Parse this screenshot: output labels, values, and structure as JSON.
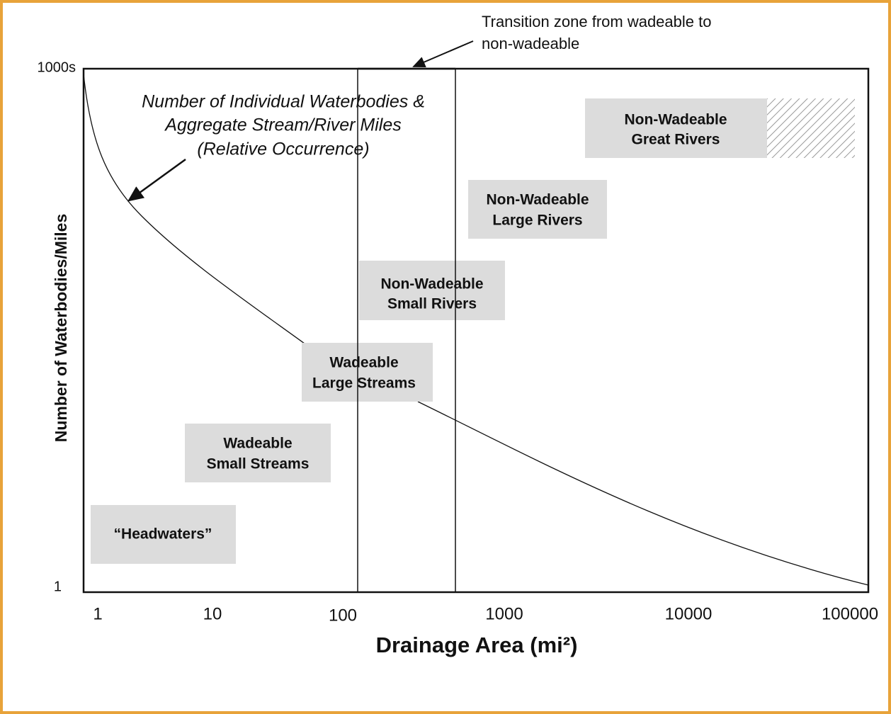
{
  "annotations": {
    "transition": [
      "Transition zone from wadeable to",
      "non-wadeable"
    ],
    "curve": [
      "Number of Individual Waterbodies &",
      "Aggregate Stream/River Miles",
      "(Relative Occurrence)"
    ]
  },
  "axes": {
    "y_label": "Number of Waterbodies/Miles",
    "x_label": "Drainage Area (mi²)",
    "y_ticks": [
      "1000s",
      "1"
    ],
    "x_ticks": [
      "1",
      "10",
      "100",
      "1000",
      "10000",
      "100000"
    ]
  },
  "boxes": [
    {
      "lines": [
        "Non-Wadeable",
        "Great Rivers"
      ]
    },
    {
      "lines": [
        "Non-Wadeable",
        "Large Rivers"
      ]
    },
    {
      "lines": [
        "Non-Wadeable",
        "Small Rivers"
      ]
    },
    {
      "lines": [
        "Wadeable",
        "Large Streams"
      ]
    },
    {
      "lines": [
        "Wadeable",
        "Small Streams"
      ]
    },
    {
      "lines": [
        "“Headwaters”"
      ]
    }
  ]
}
